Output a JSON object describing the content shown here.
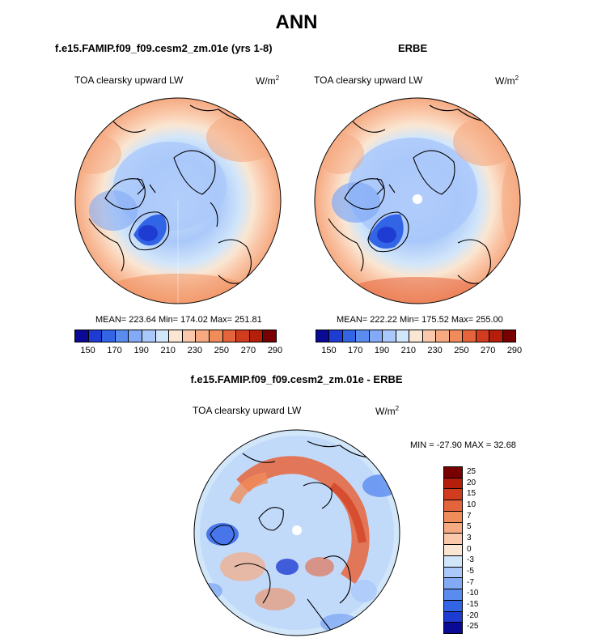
{
  "figure": {
    "title": "ANN",
    "left_case": "f.e15.FAMIP.f09_f09.cesm2_zm.01e (yrs 1-8)",
    "right_case": "ERBE",
    "diff_case": "f.e15.FAMIP.f09_f09.cesm2_zm.01e - ERBE"
  },
  "panels": {
    "left": {
      "variable": "TOA clearsky upward LW",
      "units_base": "W/m",
      "units_exp": "2",
      "stats": "MEAN= 223.64  Min= 174.02  Max= 251.81"
    },
    "right": {
      "variable": "TOA clearsky upward LW",
      "units_base": "W/m",
      "units_exp": "2",
      "stats": "MEAN= 222.22  Min= 175.52  Max= 255.00"
    },
    "diff": {
      "variable": "TOA clearsky upward LW",
      "units_base": "W/m",
      "units_exp": "2",
      "stats": "MIN = -27.90  MAX =  32.68"
    }
  },
  "colorbar_main": {
    "colors": [
      "#0a0a96",
      "#1e3cd2",
      "#3264e6",
      "#5a8cf0",
      "#82aaf5",
      "#aac8fa",
      "#d2e6fa",
      "#fae6d2",
      "#fac8aa",
      "#f5aa82",
      "#f08c5a",
      "#e6643c",
      "#d23c1e",
      "#b41e0a",
      "#780000"
    ],
    "tick_labels": [
      "150",
      "170",
      "190",
      "210",
      "230",
      "250",
      "270",
      "290"
    ]
  },
  "colorbar_diff": {
    "colors": [
      "#780000",
      "#b41e0a",
      "#d23c1e",
      "#e6643c",
      "#f08c5a",
      "#f5aa82",
      "#fac8aa",
      "#fae6d2",
      "#d2e6fa",
      "#aac8fa",
      "#82aaf5",
      "#5a8cf0",
      "#3264e6",
      "#1e3cd2",
      "#0a0a96"
    ],
    "tick_labels": [
      "25",
      "20",
      "15",
      "10",
      "7",
      "5",
      "3",
      "0",
      "-3",
      "-5",
      "-7",
      "-10",
      "-15",
      "-20",
      "-25"
    ]
  }
}
